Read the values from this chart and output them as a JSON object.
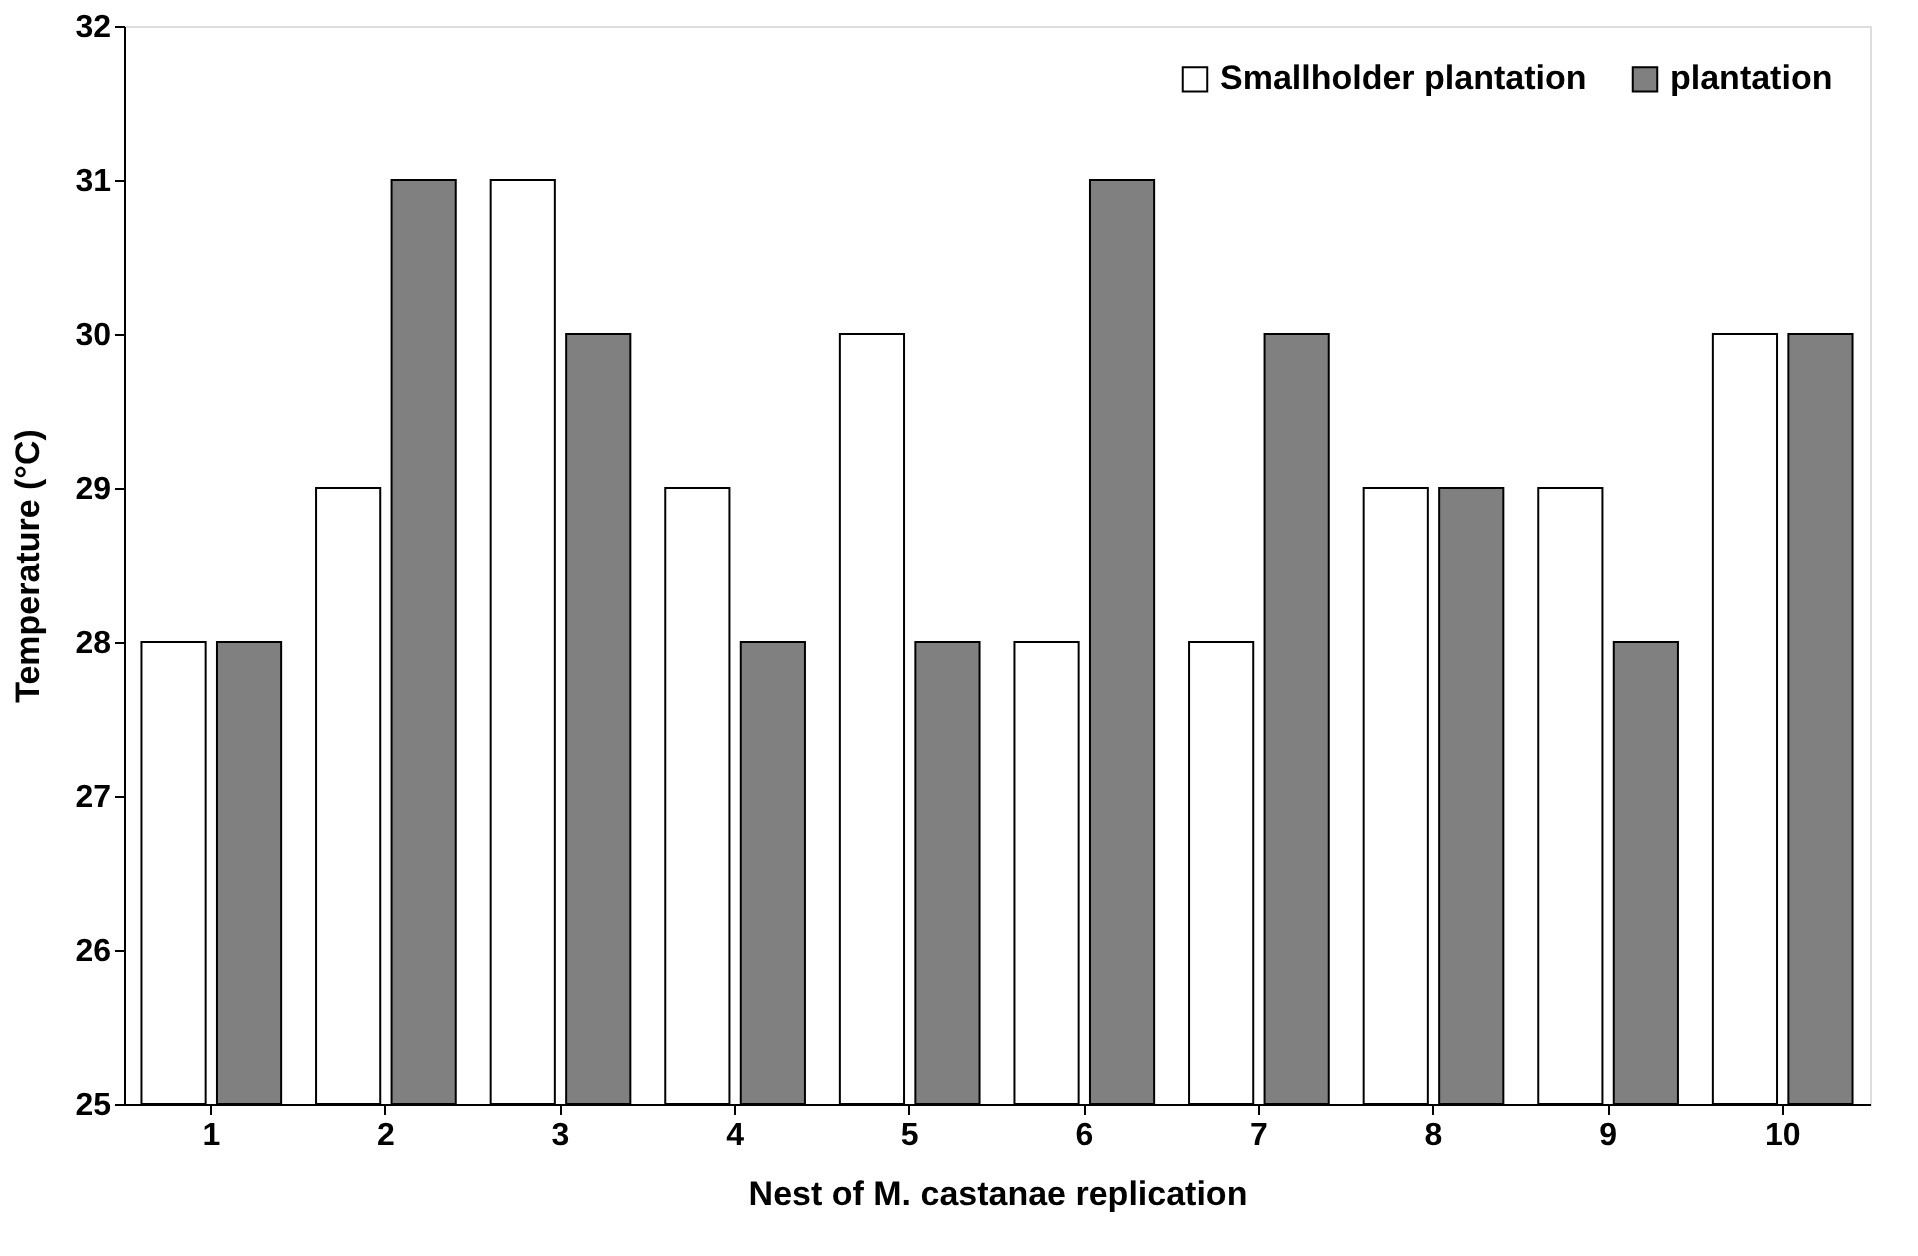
{
  "chart_data": {
    "type": "bar",
    "xlabel": "Nest of M. castanae replication",
    "ylabel": "Temperature (°C)",
    "categories": [
      "1",
      "2",
      "3",
      "4",
      "5",
      "6",
      "7",
      "8",
      "9",
      "10"
    ],
    "series": [
      {
        "name": "Smallholder plantation",
        "color": "#ffffff",
        "values": [
          28,
          29,
          31,
          29,
          30,
          28,
          28,
          29,
          29,
          30
        ]
      },
      {
        "name": "plantation",
        "color": "#808080",
        "values": [
          28,
          31,
          30,
          28,
          28,
          31,
          30,
          29,
          28,
          30
        ]
      }
    ],
    "ylim": [
      25,
      32
    ],
    "yticks": [
      25,
      26,
      27,
      28,
      29,
      30,
      31,
      32
    ],
    "grid": false,
    "legend": "top right"
  }
}
